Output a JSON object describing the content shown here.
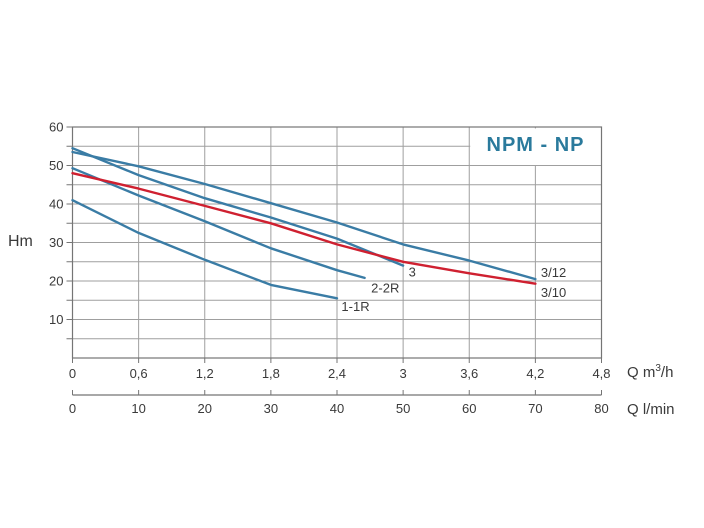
{
  "labels": {
    "y_axis": "Hm"
  },
  "chart_data": {
    "type": "line",
    "title": "NPM - NP",
    "title_color": "#2a7a9c",
    "ylabel": "Hm",
    "grid": true,
    "legend_position": "inline-curve-labels",
    "colors": {
      "blue_curve": "#3a7ca5",
      "red_curve": "#cf2030",
      "grid": "#9f9f9f",
      "border": "#757575",
      "text": "#3a3a3a",
      "background": "#ffffff"
    },
    "y_axis": {
      "min": 0,
      "max": 60,
      "major_step": 10,
      "minor_step": 5,
      "tick_labels": [
        "10",
        "20",
        "30",
        "40",
        "50",
        "60"
      ]
    },
    "x_axis_primary": {
      "unit_prefix": "Q m",
      "unit_sup": "3",
      "unit_suffix": "/h",
      "min": 0,
      "max": 4.8,
      "step": 0.6,
      "tick_labels": [
        "0",
        "0,6",
        "1,2",
        "1,8",
        "2,4",
        "3",
        "3,6",
        "4,2",
        "4,8"
      ]
    },
    "x_axis_secondary": {
      "unit": "Q l/min",
      "min": 0,
      "max": 80,
      "step": 10,
      "tick_labels": [
        "0",
        "10",
        "20",
        "30",
        "40",
        "50",
        "60",
        "70",
        "80"
      ]
    },
    "series": [
      {
        "name": "1-1R",
        "color": "blue_curve",
        "points": [
          [
            0,
            41
          ],
          [
            0.6,
            32.5
          ],
          [
            1.2,
            25.5
          ],
          [
            1.8,
            19
          ],
          [
            2.4,
            15.5
          ]
        ],
        "label": {
          "x": 2.44,
          "h": 13.4,
          "anchor": "start"
        }
      },
      {
        "name": "2-2R",
        "color": "blue_curve",
        "points": [
          [
            0,
            49.3
          ],
          [
            0.6,
            42.2
          ],
          [
            1.2,
            35.5
          ],
          [
            1.8,
            28.5
          ],
          [
            2.4,
            22.8
          ],
          [
            2.65,
            20.8
          ]
        ],
        "label": {
          "x": 2.71,
          "h": 18.2,
          "anchor": "start"
        }
      },
      {
        "name": "3",
        "color": "blue_curve",
        "points": [
          [
            0,
            54.5
          ],
          [
            0.6,
            47.5
          ],
          [
            1.2,
            41.5
          ],
          [
            1.8,
            36.5
          ],
          [
            2.4,
            31
          ],
          [
            3.0,
            24
          ]
        ],
        "label": {
          "x": 3.05,
          "h": 22.3,
          "anchor": "start"
        }
      },
      {
        "name": "3/12",
        "color": "blue_curve",
        "points": [
          [
            0,
            53.5
          ],
          [
            0.6,
            49.8
          ],
          [
            1.2,
            45.2
          ],
          [
            1.8,
            40.2
          ],
          [
            2.4,
            35.2
          ],
          [
            3.0,
            29.5
          ],
          [
            3.6,
            25.3
          ],
          [
            4.2,
            20.5
          ]
        ],
        "label": {
          "x": 4.25,
          "h": 22.2,
          "anchor": "start"
        }
      },
      {
        "name": "3/10",
        "color": "red_curve",
        "points": [
          [
            0,
            48
          ],
          [
            0.6,
            44
          ],
          [
            1.2,
            39.5
          ],
          [
            1.8,
            35
          ],
          [
            2.4,
            29.5
          ],
          [
            3.0,
            25
          ],
          [
            3.6,
            22
          ],
          [
            4.2,
            19.3
          ]
        ],
        "label": {
          "x": 4.25,
          "h": 17.0,
          "anchor": "start"
        }
      }
    ]
  }
}
